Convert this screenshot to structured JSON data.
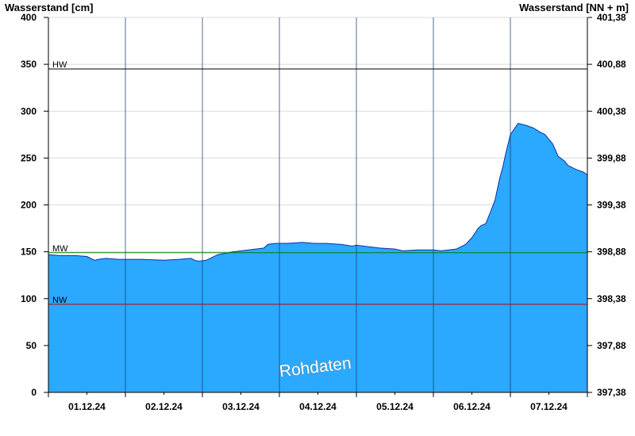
{
  "chart_data": {
    "type": "area",
    "left_axis_label": "Wasserstand [cm]",
    "right_axis_label": "Wasserstand [NN + m]",
    "ylim": [
      0,
      400
    ],
    "y_ticks": [
      0,
      50,
      100,
      150,
      200,
      250,
      300,
      350,
      400
    ],
    "y_right_ticks": [
      "397,38",
      "397,88",
      "398,38",
      "398,88",
      "399,38",
      "399,88",
      "400,38",
      "400,88",
      "401,38"
    ],
    "x_labels": [
      "01.12.24",
      "02.12.24",
      "03.12.24",
      "04.12.24",
      "05.12.24",
      "06.12.24",
      "07.12.24"
    ],
    "xlim_days": [
      0.0,
      7.0
    ],
    "reference_lines": [
      {
        "label": "HW",
        "value": 345,
        "color": "#000000"
      },
      {
        "label": "MW",
        "value": 149,
        "color": "#008000"
      },
      {
        "label": "NW",
        "value": 94,
        "color": "#c00000"
      }
    ],
    "fill_color": "#2aa9ff",
    "line_color": "#1030a0",
    "watermark": "Rohdaten",
    "series": [
      {
        "x": [
          0.0,
          0.15,
          0.35,
          0.5,
          0.6,
          0.65,
          0.75,
          0.9,
          1.0,
          1.2,
          1.5,
          1.7,
          1.85,
          1.9,
          1.95,
          2.05,
          2.2,
          2.4,
          2.6,
          2.8,
          2.85,
          2.95,
          3.1,
          3.3,
          3.45,
          3.6,
          3.8,
          3.95,
          4.0,
          4.1,
          4.3,
          4.5,
          4.6,
          4.8,
          5.0,
          5.1,
          5.2,
          5.3,
          5.42,
          5.5,
          5.58,
          5.62,
          5.68,
          5.72,
          5.8,
          5.86,
          5.9,
          5.94,
          6.0,
          6.1,
          6.2,
          6.3,
          6.38,
          6.45,
          6.55,
          6.62,
          6.7,
          6.75,
          6.85,
          6.95,
          7.0
        ],
        "values": [
          147,
          146,
          146,
          145,
          141,
          142,
          143,
          142,
          142,
          142,
          141,
          142,
          143,
          141,
          140,
          141,
          147,
          150,
          152,
          154,
          158,
          159,
          159,
          160,
          159,
          159,
          158,
          156,
          157,
          156,
          154,
          153,
          151,
          152,
          152,
          151,
          152,
          153,
          158,
          165,
          175,
          178,
          180,
          188,
          205,
          228,
          240,
          255,
          275,
          287,
          285,
          282,
          278,
          275,
          265,
          252,
          247,
          242,
          238,
          235,
          232
        ]
      }
    ]
  }
}
